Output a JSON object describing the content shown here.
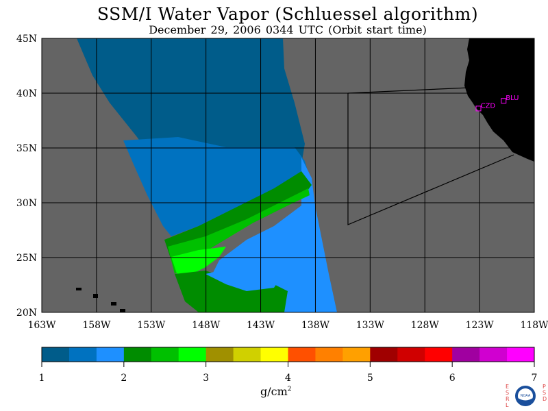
{
  "title": "SSM/I Water Vapor (Schluessel algorithm)",
  "subtitle": "December 29, 2006   0344 UTC  (Orbit start time)",
  "map": {
    "lat_labels": [
      "45N",
      "40N",
      "35N",
      "30N",
      "25N",
      "20N"
    ],
    "lon_labels": [
      "163W",
      "158W",
      "153W",
      "148W",
      "143W",
      "138W",
      "133W",
      "128W",
      "123W",
      "118W"
    ],
    "lat_range": [
      20,
      45
    ],
    "lon_range": [
      -163,
      -118
    ],
    "stations": [
      {
        "name": "CZD",
        "lon": -123.1,
        "lat": 38.6
      },
      {
        "name": "BLU",
        "lon": -120.8,
        "lat": 39.3
      }
    ],
    "colors": {
      "land": "#000000",
      "no_data": "#646464",
      "grid": "#000000",
      "station": "#ff00ff"
    }
  },
  "colorbar": {
    "tick_labels": [
      "1",
      "2",
      "3",
      "4",
      "5",
      "6",
      "7"
    ],
    "min": 1,
    "max": 7,
    "colors": [
      "#005c8a",
      "#0072c0",
      "#1e90ff",
      "#008c00",
      "#00c000",
      "#00ff00",
      "#a09000",
      "#d0d000",
      "#ffff00",
      "#ff5000",
      "#ff8000",
      "#ffa000",
      "#a00000",
      "#d00000",
      "#ff0000",
      "#a000a0",
      "#d000d0",
      "#ff00ff"
    ],
    "units": "g/cm",
    "units_exp": "2"
  },
  "logo": {
    "left_text": "ESRL",
    "right_text": "PSD",
    "center_text": "NOAA"
  }
}
